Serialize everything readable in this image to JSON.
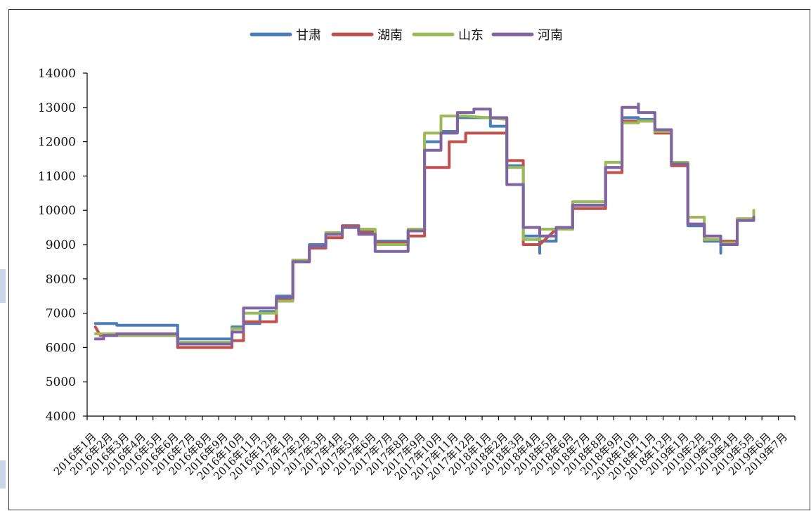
{
  "chart_data": {
    "type": "line",
    "title": "",
    "xlabel": "",
    "ylabel": "",
    "ylim": [
      4000,
      14000
    ],
    "yticks": [
      "4000",
      "5000",
      "6000",
      "7000",
      "8000",
      "9000",
      "10000",
      "11000",
      "12000",
      "13000",
      "14000"
    ],
    "categories": [
      "2016年1月",
      "2016年2月",
      "2016年3月",
      "2016年4月",
      "2016年5月",
      "2016年6月",
      "2016年7月",
      "2016年8月",
      "2016年9月",
      "2016年10月",
      "2016年11月",
      "2016年12月",
      "2017年1月",
      "2017年2月",
      "2017年3月",
      "2017年4月",
      "2017年5月",
      "2017年6月",
      "2017年7月",
      "2017年8月",
      "2017年9月",
      "2017年10月",
      "2017年11月",
      "2017年12月",
      "2018年1月",
      "2018年2月",
      "2018年3月",
      "2018年4月",
      "2018年5月",
      "2018年6月",
      "2018年7月",
      "2018年8月",
      "2018年9月",
      "2018年10月",
      "2018年11月",
      "2018年12月",
      "2019年1月",
      "2019年2月",
      "2019年3月",
      "2019年4月",
      "2019年5月",
      "2019年6月",
      "2019年7月"
    ],
    "step": true,
    "grid": false,
    "legend_position": "top-center",
    "series": [
      {
        "name": "甘肃",
        "color": "#4a7ebb",
        "points": [
          [
            0.0,
            6700
          ],
          [
            1.3,
            6700
          ],
          [
            1.3,
            6650
          ],
          [
            5.0,
            6650
          ],
          [
            5.0,
            6250
          ],
          [
            8.3,
            6250
          ],
          [
            8.3,
            6600
          ],
          [
            9.0,
            6600
          ],
          [
            9.0,
            6700
          ],
          [
            10.0,
            6700
          ],
          [
            10.0,
            7050
          ],
          [
            11.0,
            7050
          ],
          [
            11.0,
            7500
          ],
          [
            12.0,
            7500
          ],
          [
            12.0,
            8550
          ],
          [
            13.0,
            8550
          ],
          [
            13.0,
            9000
          ],
          [
            14.0,
            9000
          ],
          [
            14.0,
            9300
          ],
          [
            15.0,
            9300
          ],
          [
            15.0,
            9550
          ],
          [
            16.0,
            9550
          ],
          [
            16.0,
            9400
          ],
          [
            17.0,
            9400
          ],
          [
            17.0,
            9100
          ],
          [
            19.0,
            9100
          ],
          [
            19.0,
            9400
          ],
          [
            20.0,
            9400
          ],
          [
            20.0,
            12000
          ],
          [
            21.0,
            12000
          ],
          [
            21.0,
            12300
          ],
          [
            22.0,
            12300
          ],
          [
            22.0,
            12700
          ],
          [
            24.0,
            12700
          ],
          [
            24.0,
            12450
          ],
          [
            25.0,
            12450
          ],
          [
            25.0,
            11300
          ],
          [
            26.0,
            11300
          ],
          [
            26.0,
            9250
          ],
          [
            27.0,
            9250
          ],
          [
            27.0,
            8750
          ],
          [
            27.0,
            9100
          ],
          [
            28.0,
            9100
          ],
          [
            28.0,
            9450
          ],
          [
            29.0,
            9450
          ],
          [
            29.0,
            10150
          ],
          [
            31.0,
            10150
          ],
          [
            31.0,
            11250
          ],
          [
            32.0,
            11250
          ],
          [
            32.0,
            12700
          ],
          [
            33.0,
            12700
          ],
          [
            33.0,
            12650
          ],
          [
            34.0,
            12650
          ],
          [
            34.0,
            12300
          ],
          [
            35.0,
            12300
          ],
          [
            35.0,
            11350
          ],
          [
            36.0,
            11350
          ],
          [
            36.0,
            9550
          ],
          [
            37.0,
            9550
          ],
          [
            37.0,
            9100
          ],
          [
            38.0,
            9100
          ],
          [
            38.0,
            8750
          ],
          [
            38.0,
            9000
          ],
          [
            39.0,
            9000
          ],
          [
            39.0,
            9750
          ],
          [
            40.0,
            9750
          ],
          [
            40.0,
            9800
          ]
        ]
      },
      {
        "name": "湖南",
        "color": "#c0504d",
        "points": [
          [
            0.0,
            6600
          ],
          [
            0.3,
            6350
          ],
          [
            1.3,
            6350
          ],
          [
            5.0,
            6350
          ],
          [
            5.0,
            6000
          ],
          [
            8.3,
            6000
          ],
          [
            8.3,
            6200
          ],
          [
            9.0,
            6200
          ],
          [
            9.0,
            6750
          ],
          [
            11.0,
            6750
          ],
          [
            11.0,
            7400
          ],
          [
            12.0,
            7400
          ],
          [
            12.0,
            8500
          ],
          [
            13.0,
            8500
          ],
          [
            13.0,
            8900
          ],
          [
            14.0,
            8900
          ],
          [
            14.0,
            9200
          ],
          [
            15.0,
            9200
          ],
          [
            15.0,
            9550
          ],
          [
            16.0,
            9550
          ],
          [
            16.0,
            9350
          ],
          [
            17.0,
            9350
          ],
          [
            17.0,
            9050
          ],
          [
            19.0,
            9050
          ],
          [
            19.0,
            9250
          ],
          [
            20.0,
            9250
          ],
          [
            20.0,
            11250
          ],
          [
            21.5,
            11250
          ],
          [
            21.5,
            12000
          ],
          [
            22.5,
            12000
          ],
          [
            22.5,
            12250
          ],
          [
            25.0,
            12250
          ],
          [
            25.0,
            11450
          ],
          [
            26.0,
            11450
          ],
          [
            26.0,
            9000
          ],
          [
            27.0,
            9000
          ],
          [
            28.0,
            9450
          ],
          [
            29.0,
            9450
          ],
          [
            29.0,
            10050
          ],
          [
            31.0,
            10050
          ],
          [
            31.0,
            11100
          ],
          [
            32.0,
            11100
          ],
          [
            32.0,
            12600
          ],
          [
            34.0,
            12600
          ],
          [
            34.0,
            12250
          ],
          [
            35.0,
            12250
          ],
          [
            35.0,
            11300
          ],
          [
            36.0,
            11300
          ],
          [
            36.0,
            9600
          ],
          [
            37.0,
            9600
          ],
          [
            37.0,
            9150
          ],
          [
            38.0,
            9150
          ],
          [
            38.0,
            9100
          ],
          [
            39.0,
            9100
          ],
          [
            39.0,
            9750
          ],
          [
            40.0,
            9750
          ]
        ]
      },
      {
        "name": "山东",
        "color": "#9bbb59",
        "points": [
          [
            0.0,
            6400
          ],
          [
            1.3,
            6400
          ],
          [
            1.3,
            6350
          ],
          [
            5.0,
            6350
          ],
          [
            5.0,
            6150
          ],
          [
            8.3,
            6150
          ],
          [
            8.3,
            6550
          ],
          [
            9.0,
            6550
          ],
          [
            9.0,
            7000
          ],
          [
            11.0,
            7000
          ],
          [
            11.0,
            7350
          ],
          [
            12.0,
            7350
          ],
          [
            12.0,
            8550
          ],
          [
            13.0,
            8550
          ],
          [
            13.0,
            8950
          ],
          [
            14.0,
            8950
          ],
          [
            14.0,
            9350
          ],
          [
            15.0,
            9350
          ],
          [
            15.0,
            9500
          ],
          [
            16.0,
            9500
          ],
          [
            16.0,
            9450
          ],
          [
            17.0,
            9450
          ],
          [
            17.0,
            9000
          ],
          [
            19.0,
            9000
          ],
          [
            19.0,
            9450
          ],
          [
            20.0,
            9450
          ],
          [
            20.0,
            12250
          ],
          [
            21.0,
            12250
          ],
          [
            21.0,
            12750
          ],
          [
            22.0,
            12750
          ],
          [
            22.5,
            12750
          ],
          [
            25.0,
            12650
          ],
          [
            25.0,
            11250
          ],
          [
            26.0,
            11250
          ],
          [
            26.0,
            9150
          ],
          [
            27.0,
            9150
          ],
          [
            27.0,
            9450
          ],
          [
            29.0,
            9450
          ],
          [
            29.0,
            10250
          ],
          [
            31.0,
            10250
          ],
          [
            31.0,
            11400
          ],
          [
            32.0,
            11400
          ],
          [
            32.0,
            12550
          ],
          [
            33.0,
            12550
          ],
          [
            33.0,
            12600
          ],
          [
            34.0,
            12600
          ],
          [
            34.0,
            12300
          ],
          [
            35.0,
            12300
          ],
          [
            35.0,
            11400
          ],
          [
            36.0,
            11400
          ],
          [
            36.0,
            9800
          ],
          [
            37.0,
            9800
          ],
          [
            37.0,
            9150
          ],
          [
            38.0,
            9150
          ],
          [
            38.0,
            9050
          ],
          [
            39.0,
            9050
          ],
          [
            39.0,
            9750
          ],
          [
            40.0,
            9750
          ],
          [
            40.0,
            10000
          ]
        ]
      },
      {
        "name": "河南",
        "color": "#8064a2",
        "points": [
          [
            0.0,
            6250
          ],
          [
            0.5,
            6250
          ],
          [
            0.5,
            6350
          ],
          [
            1.3,
            6350
          ],
          [
            1.3,
            6400
          ],
          [
            5.0,
            6400
          ],
          [
            5.0,
            6100
          ],
          [
            8.3,
            6100
          ],
          [
            8.3,
            6450
          ],
          [
            9.0,
            6450
          ],
          [
            9.0,
            7150
          ],
          [
            11.0,
            7150
          ],
          [
            11.0,
            7450
          ],
          [
            12.0,
            7450
          ],
          [
            12.0,
            8500
          ],
          [
            13.0,
            8500
          ],
          [
            13.0,
            8950
          ],
          [
            14.0,
            8950
          ],
          [
            14.0,
            9300
          ],
          [
            15.0,
            9300
          ],
          [
            15.0,
            9500
          ],
          [
            16.0,
            9500
          ],
          [
            16.0,
            9300
          ],
          [
            17.0,
            9300
          ],
          [
            17.0,
            8800
          ],
          [
            19.0,
            8800
          ],
          [
            19.0,
            9400
          ],
          [
            20.0,
            9400
          ],
          [
            20.0,
            11750
          ],
          [
            21.0,
            11750
          ],
          [
            21.0,
            12250
          ],
          [
            22.0,
            12250
          ],
          [
            22.0,
            12850
          ],
          [
            23.0,
            12850
          ],
          [
            23.0,
            12950
          ],
          [
            24.0,
            12950
          ],
          [
            24.0,
            12700
          ],
          [
            25.0,
            12700
          ],
          [
            25.0,
            12550
          ],
          [
            25.0,
            10750
          ],
          [
            26.0,
            10750
          ],
          [
            26.0,
            9500
          ],
          [
            27.0,
            9500
          ],
          [
            27.0,
            9250
          ],
          [
            28.0,
            9250
          ],
          [
            28.0,
            9500
          ],
          [
            29.0,
            9500
          ],
          [
            29.0,
            10150
          ],
          [
            31.0,
            10150
          ],
          [
            31.0,
            11250
          ],
          [
            32.0,
            11250
          ],
          [
            32.0,
            13000
          ],
          [
            33.0,
            13000
          ],
          [
            33.0,
            13100
          ],
          [
            33.0,
            12850
          ],
          [
            34.0,
            12850
          ],
          [
            34.0,
            12350
          ],
          [
            35.0,
            12350
          ],
          [
            35.0,
            11350
          ],
          [
            36.0,
            11350
          ],
          [
            36.0,
            9600
          ],
          [
            37.0,
            9600
          ],
          [
            37.0,
            9250
          ],
          [
            38.0,
            9250
          ],
          [
            38.0,
            9000
          ],
          [
            39.0,
            9000
          ],
          [
            39.0,
            9700
          ],
          [
            40.0,
            9700
          ],
          [
            40.0,
            9800
          ]
        ]
      }
    ]
  }
}
